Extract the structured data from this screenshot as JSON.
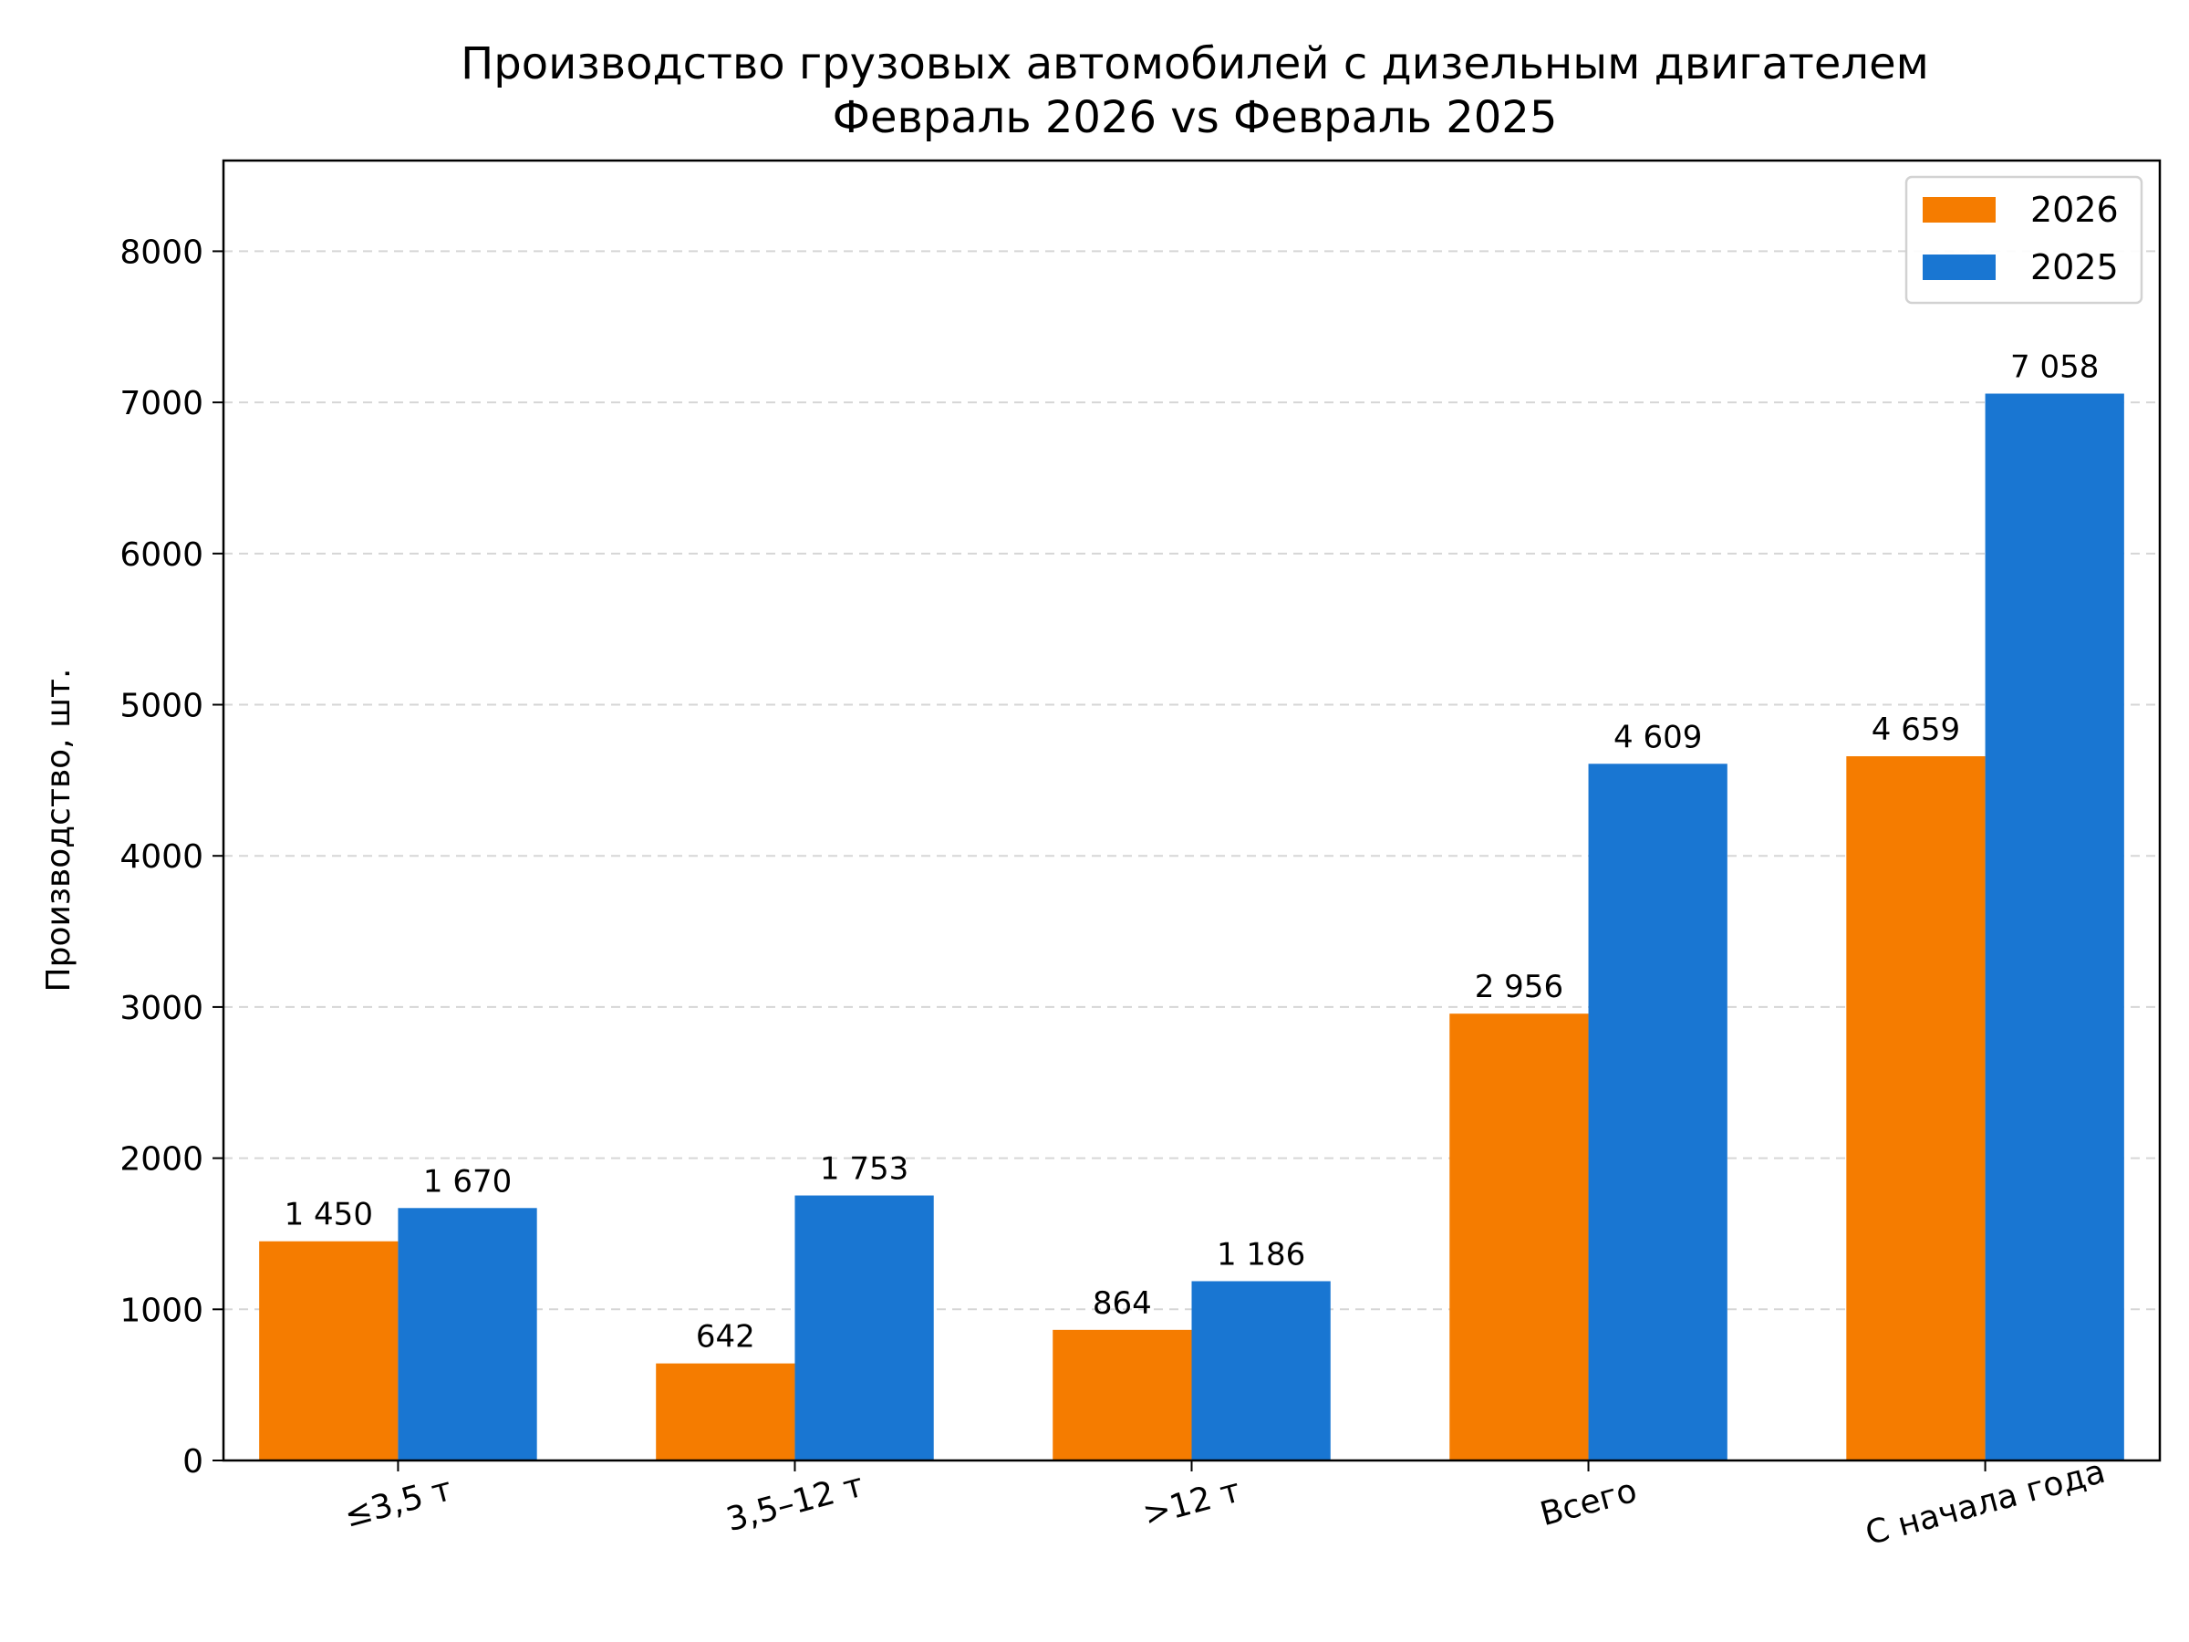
{
  "chart_data": {
    "type": "bar",
    "title": "Производство грузовых автомобилей с дизельным двигателем",
    "subtitle": "Февраль 2026 vs Февраль 2025",
    "xlabel": "",
    "ylabel": "Производство, шт.",
    "categories": [
      "≤3,5 т",
      "3,5–12 т",
      ">12 т",
      "Всего",
      "С начала года"
    ],
    "series": [
      {
        "name": "2026",
        "color": "#f57c00",
        "values": [
          1450,
          642,
          864,
          2956,
          4659
        ],
        "labels": [
          "1 450",
          "642",
          "864",
          "2 956",
          "4 659"
        ]
      },
      {
        "name": "2025",
        "color": "#1976d2",
        "values": [
          1670,
          1753,
          1186,
          4609,
          7058
        ],
        "labels": [
          "1 670",
          "1 753",
          "1 186",
          "4 609",
          "7 058"
        ]
      }
    ],
    "ylim": [
      0,
      8600
    ],
    "yticks": [
      0,
      1000,
      2000,
      3000,
      4000,
      5000,
      6000,
      7000,
      8000
    ],
    "ytick_labels": [
      "0",
      "1000",
      "2000",
      "3000",
      "4000",
      "5000",
      "6000",
      "7000",
      "8000"
    ],
    "grid": "y-dashed",
    "legend_position": "upper right"
  }
}
